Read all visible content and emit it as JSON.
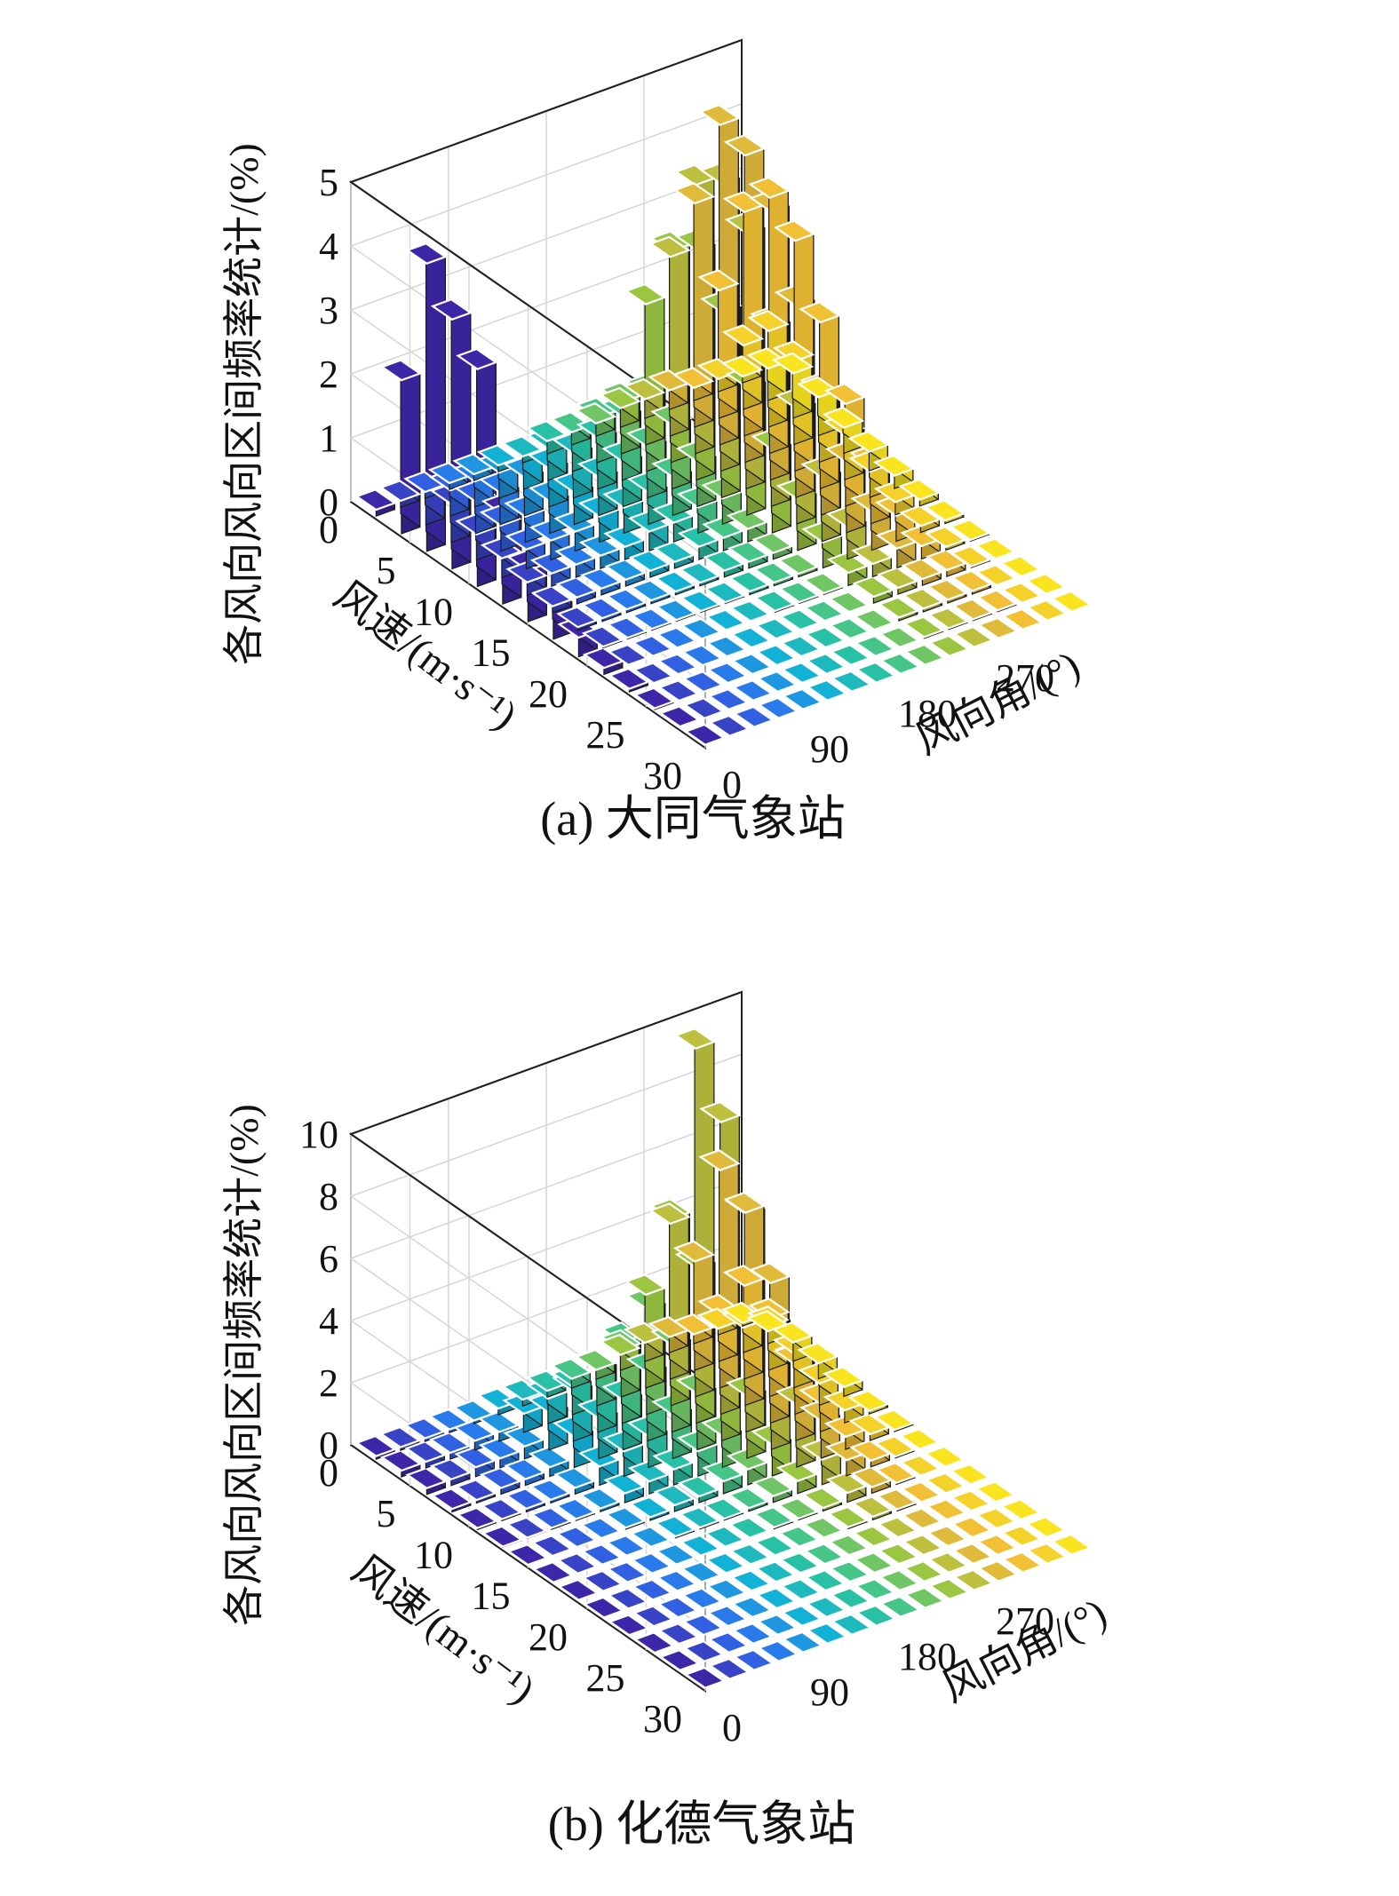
{
  "chart_data": [
    {
      "type": "bar3d",
      "caption": "(a) 大同气象站",
      "zlabel": "各风向风向区间频率统计/(%)",
      "xlabel": "风速/(m·s⁻¹)",
      "ylabel": "风向角/(°)",
      "x_ticks": [
        "0",
        "5",
        "10",
        "15",
        "20",
        "25",
        "30"
      ],
      "y_ticks": [
        "0",
        "90",
        "180",
        "270"
      ],
      "z_ticks": [
        "0",
        "1",
        "2",
        "3",
        "4",
        "5"
      ],
      "zlim": [
        0,
        5
      ],
      "grid": true,
      "colormap": [
        "#3e26a8",
        "#2f6ef0",
        "#12b1d6",
        "#2fc59a",
        "#9bc642",
        "#f0b739",
        "#f9e41f"
      ],
      "bins": {
        "wind_speed_bins": 14,
        "direction_bins": 16,
        "direction_labels_deg": [
          0,
          22.5,
          45,
          67.5,
          90,
          112.5,
          135,
          157.5,
          180,
          202.5,
          225,
          247.5,
          270,
          292.5,
          315,
          337.5
        ]
      },
      "series": [
        {
          "direction": 0,
          "values": [
            0.1,
            2.4,
            4.5,
            3.9,
            3.4,
            1.4,
            0.8,
            0.5,
            0.3,
            0.1,
            0.05,
            0.02,
            0.01,
            0
          ]
        },
        {
          "direction": 22.5,
          "values": [
            0.1,
            0.5,
            0.6,
            0.4,
            0.3,
            0.2,
            0.1,
            0.05,
            0.02,
            0.01,
            0,
            0,
            0,
            0
          ]
        },
        {
          "direction": 45,
          "values": [
            0.1,
            0.4,
            0.5,
            0.4,
            0.3,
            0.2,
            0.1,
            0.05,
            0.02,
            0.01,
            0,
            0,
            0,
            0
          ]
        },
        {
          "direction": 67.5,
          "values": [
            0.1,
            0.4,
            0.5,
            0.4,
            0.3,
            0.2,
            0.1,
            0.05,
            0.02,
            0,
            0,
            0,
            0,
            0
          ]
        },
        {
          "direction": 90,
          "values": [
            0.1,
            0.4,
            0.6,
            0.5,
            0.3,
            0.2,
            0.1,
            0.05,
            0.02,
            0,
            0,
            0,
            0,
            0
          ]
        },
        {
          "direction": 112.5,
          "values": [
            0.1,
            0.5,
            0.6,
            0.5,
            0.4,
            0.2,
            0.1,
            0.05,
            0.02,
            0,
            0,
            0,
            0,
            0
          ]
        },
        {
          "direction": 135,
          "values": [
            0.1,
            0.5,
            0.7,
            0.6,
            0.4,
            0.3,
            0.1,
            0.05,
            0.02,
            0,
            0,
            0,
            0,
            0
          ]
        },
        {
          "direction": 157.5,
          "values": [
            0.2,
            0.6,
            0.8,
            0.7,
            0.5,
            0.3,
            0.2,
            0.1,
            0.05,
            0.02,
            0,
            0,
            0,
            0
          ]
        },
        {
          "direction": 180,
          "values": [
            0.2,
            0.7,
            1.0,
            0.8,
            0.6,
            0.4,
            0.2,
            0.1,
            0.05,
            0.02,
            0,
            0,
            0,
            0
          ]
        },
        {
          "direction": 202.5,
          "values": [
            0.2,
            0.8,
            1.2,
            1.0,
            0.7,
            0.4,
            0.2,
            0.1,
            0.05,
            0.02,
            0,
            0,
            0,
            0
          ]
        },
        {
          "direction": 225,
          "values": [
            0.3,
            2.2,
            3.3,
            3.6,
            2.9,
            2.0,
            1.3,
            0.8,
            0.4,
            0.2,
            0.1,
            0.05,
            0.02,
            0
          ]
        },
        {
          "direction": 247.5,
          "values": [
            0.3,
            2.8,
            4.2,
            4.5,
            4.0,
            2.8,
            1.8,
            1.0,
            0.5,
            0.2,
            0.1,
            0.05,
            0.02,
            0
          ]
        },
        {
          "direction": 270,
          "values": [
            0.3,
            3.5,
            5.0,
            4.8,
            4.2,
            3.0,
            1.9,
            1.1,
            0.6,
            0.3,
            0.1,
            0.05,
            0.02,
            0
          ]
        },
        {
          "direction": 292.5,
          "values": [
            0.2,
            2.0,
            3.5,
            4.0,
            3.6,
            2.6,
            1.6,
            0.9,
            0.4,
            0.2,
            0.1,
            0.05,
            0.02,
            0
          ]
        },
        {
          "direction": 315,
          "values": [
            0.2,
            1.0,
            1.5,
            1.3,
            1.0,
            0.7,
            0.4,
            0.2,
            0.1,
            0.05,
            0.02,
            0,
            0,
            0
          ]
        },
        {
          "direction": 337.5,
          "values": [
            0.1,
            0.5,
            0.7,
            0.6,
            0.4,
            0.3,
            0.2,
            0.1,
            0.05,
            0.02,
            0,
            0,
            0,
            0
          ]
        }
      ]
    },
    {
      "type": "bar3d",
      "caption": "(b) 化德气象站",
      "zlabel": "各风向风向区间频率统计/(%)",
      "xlabel": "风速/(m·s⁻¹)",
      "ylabel": "风向角/(°)",
      "x_ticks": [
        "0",
        "5",
        "10",
        "15",
        "20",
        "25",
        "30"
      ],
      "y_ticks": [
        "0",
        "90",
        "180",
        "270"
      ],
      "z_ticks": [
        "0",
        "2",
        "4",
        "6",
        "8",
        "10"
      ],
      "zlim": [
        0,
        10
      ],
      "grid": true,
      "colormap": [
        "#3e26a8",
        "#2f6ef0",
        "#12b1d6",
        "#2fc59a",
        "#9bc642",
        "#f0b739",
        "#f9e41f"
      ],
      "bins": {
        "wind_speed_bins": 14,
        "direction_bins": 16,
        "direction_labels_deg": [
          0,
          22.5,
          45,
          67.5,
          90,
          112.5,
          135,
          157.5,
          180,
          202.5,
          225,
          247.5,
          270,
          292.5,
          315,
          337.5
        ]
      },
      "series": [
        {
          "direction": 0,
          "values": [
            0.1,
            0.2,
            0.2,
            0.1,
            0.05,
            0.02,
            0,
            0,
            0,
            0,
            0,
            0,
            0,
            0
          ]
        },
        {
          "direction": 22.5,
          "values": [
            0.1,
            0.2,
            0.2,
            0.1,
            0.05,
            0.02,
            0,
            0,
            0,
            0,
            0,
            0,
            0,
            0
          ]
        },
        {
          "direction": 45,
          "values": [
            0.1,
            0.2,
            0.3,
            0.2,
            0.1,
            0.05,
            0,
            0,
            0,
            0,
            0,
            0,
            0,
            0
          ]
        },
        {
          "direction": 67.5,
          "values": [
            0.1,
            0.3,
            0.3,
            0.2,
            0.1,
            0.05,
            0,
            0,
            0,
            0,
            0,
            0,
            0,
            0
          ]
        },
        {
          "direction": 90,
          "values": [
            0.1,
            0.3,
            0.4,
            0.3,
            0.2,
            0.1,
            0.05,
            0,
            0,
            0,
            0,
            0,
            0,
            0
          ]
        },
        {
          "direction": 112.5,
          "values": [
            0.2,
            0.6,
            1.2,
            1.0,
            0.6,
            0.3,
            0.1,
            0.05,
            0,
            0,
            0,
            0,
            0,
            0
          ]
        },
        {
          "direction": 135,
          "values": [
            0.2,
            0.8,
            1.6,
            1.3,
            0.8,
            0.4,
            0.2,
            0.05,
            0,
            0,
            0,
            0,
            0,
            0
          ]
        },
        {
          "direction": 157.5,
          "values": [
            0.2,
            0.9,
            2.0,
            1.6,
            1.0,
            0.5,
            0.2,
            0.05,
            0,
            0,
            0,
            0,
            0,
            0
          ]
        },
        {
          "direction": 180,
          "values": [
            0.3,
            1.2,
            2.6,
            2.2,
            1.4,
            0.8,
            0.4,
            0.1,
            0.05,
            0,
            0,
            0,
            0,
            0
          ]
        },
        {
          "direction": 202.5,
          "values": [
            0.3,
            1.5,
            3.4,
            2.8,
            1.8,
            1.0,
            0.5,
            0.2,
            0.05,
            0,
            0,
            0,
            0,
            0
          ]
        },
        {
          "direction": 225,
          "values": [
            0.5,
            3.0,
            6.0,
            5.0,
            3.5,
            2.0,
            1.0,
            0.4,
            0.1,
            0.05,
            0,
            0,
            0,
            0
          ]
        },
        {
          "direction": 247.5,
          "values": [
            0.6,
            5.0,
            11.2,
            9.4,
            7.0,
            4.0,
            2.0,
            0.8,
            0.3,
            0.1,
            0,
            0,
            0,
            0
          ]
        },
        {
          "direction": 270,
          "values": [
            0.5,
            3.5,
            7.0,
            6.2,
            4.5,
            2.5,
            1.2,
            0.5,
            0.2,
            0.05,
            0,
            0,
            0,
            0
          ]
        },
        {
          "direction": 292.5,
          "values": [
            0.3,
            1.5,
            3.0,
            2.5,
            1.6,
            0.9,
            0.4,
            0.2,
            0.05,
            0,
            0,
            0,
            0,
            0
          ]
        },
        {
          "direction": 315,
          "values": [
            0.2,
            0.8,
            1.4,
            1.1,
            0.7,
            0.4,
            0.2,
            0.05,
            0,
            0,
            0,
            0,
            0,
            0
          ]
        },
        {
          "direction": 337.5,
          "values": [
            0.1,
            0.4,
            0.6,
            0.5,
            0.3,
            0.1,
            0.05,
            0,
            0,
            0,
            0,
            0,
            0,
            0
          ]
        }
      ]
    }
  ]
}
